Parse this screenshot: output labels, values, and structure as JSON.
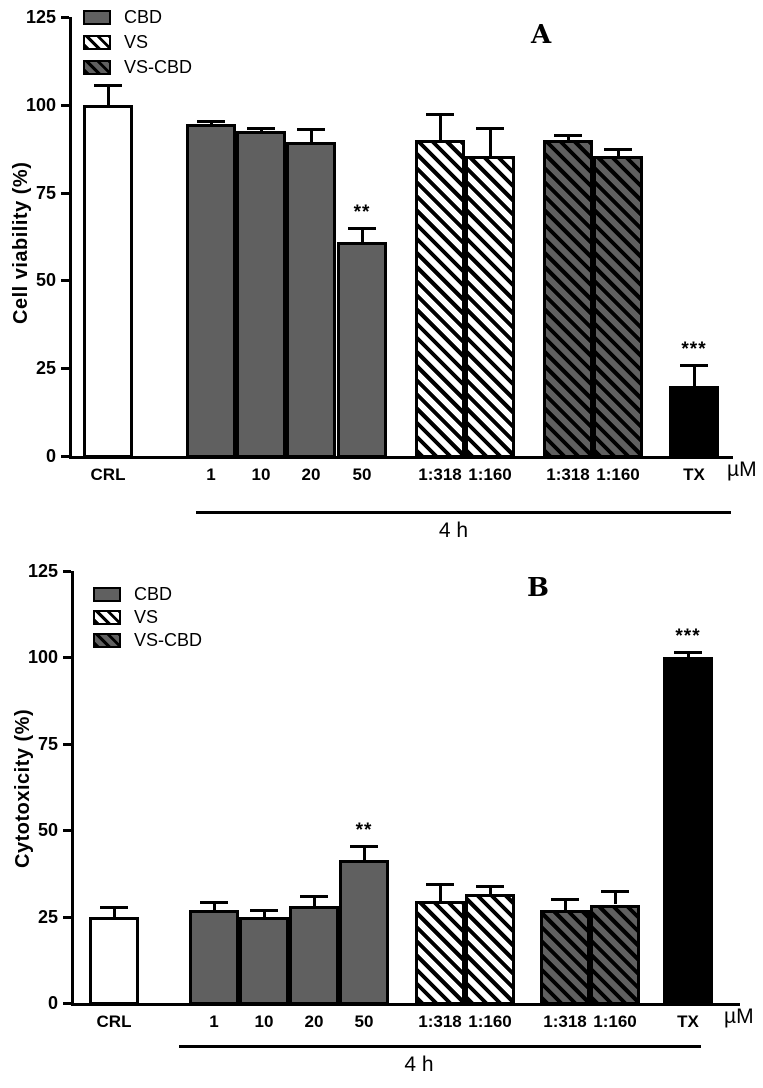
{
  "figure": {
    "background": "#ffffff",
    "ink_color": "#000000",
    "bar_gray": "#606060"
  },
  "chart_data": [
    {
      "type": "bar",
      "panel_letter": "A",
      "ylabel": "Cell viability (%)",
      "ylim": [
        0,
        125
      ],
      "yticks": [
        0,
        25,
        50,
        75,
        100,
        125
      ],
      "x_unit_label": "µM",
      "group_annotation": "4 h",
      "grid": false,
      "legend_position": "top-left",
      "legend": [
        {
          "name": "CBD",
          "pattern": "solid-gray"
        },
        {
          "name": "VS",
          "pattern": "white-black-hatch"
        },
        {
          "name": "VS-CBD",
          "pattern": "gray-black-hatch"
        }
      ],
      "categories": [
        "CRL",
        "1",
        "10",
        "20",
        "50",
        "1:318",
        "1:160",
        "1:318",
        "1:160",
        "TX"
      ],
      "bars": [
        {
          "category": "CRL",
          "series": "CRL",
          "value": 100,
          "error": 5.5,
          "pattern": "white",
          "significance": ""
        },
        {
          "category": "1",
          "series": "CBD",
          "value": 94.5,
          "error": 1,
          "pattern": "solid-gray",
          "significance": ""
        },
        {
          "category": "10",
          "series": "CBD",
          "value": 92.5,
          "error": 0.8,
          "pattern": "solid-gray",
          "significance": ""
        },
        {
          "category": "20",
          "series": "CBD",
          "value": 89.5,
          "error": 3.5,
          "pattern": "solid-gray",
          "significance": ""
        },
        {
          "category": "50",
          "series": "CBD",
          "value": 61,
          "error": 4,
          "pattern": "solid-gray",
          "significance": "**"
        },
        {
          "category": "1:318",
          "series": "VS",
          "value": 90,
          "error": 7.5,
          "pattern": "white-black-hatch",
          "significance": ""
        },
        {
          "category": "1:160",
          "series": "VS",
          "value": 85.5,
          "error": 8,
          "pattern": "white-black-hatch",
          "significance": ""
        },
        {
          "category": "1:318",
          "series": "VS-CBD",
          "value": 90,
          "error": 1.5,
          "pattern": "gray-black-hatch",
          "significance": ""
        },
        {
          "category": "1:160",
          "series": "VS-CBD",
          "value": 85.5,
          "error": 2,
          "pattern": "gray-black-hatch",
          "significance": ""
        },
        {
          "category": "TX",
          "series": "TX",
          "value": 20,
          "error": 6,
          "pattern": "solid-black",
          "significance": "***"
        }
      ]
    },
    {
      "type": "bar",
      "panel_letter": "B",
      "ylabel": "Cytotoxicity (%)",
      "ylim": [
        0,
        125
      ],
      "yticks": [
        0,
        25,
        50,
        75,
        100,
        125
      ],
      "x_unit_label": "µM",
      "group_annotation": "4 h",
      "grid": false,
      "legend_position": "top-left",
      "legend": [
        {
          "name": "CBD",
          "pattern": "solid-gray"
        },
        {
          "name": "VS",
          "pattern": "white-black-hatch"
        },
        {
          "name": "VS-CBD",
          "pattern": "gray-black-hatch"
        }
      ],
      "categories": [
        "CRL",
        "1",
        "10",
        "20",
        "50",
        "1:318",
        "1:160",
        "1:318",
        "1:160",
        "TX"
      ],
      "bars": [
        {
          "category": "CRL",
          "series": "CRL",
          "value": 25,
          "error": 2.8,
          "pattern": "white",
          "significance": ""
        },
        {
          "category": "1",
          "series": "CBD",
          "value": 27,
          "error": 2.3,
          "pattern": "solid-gray",
          "significance": ""
        },
        {
          "category": "10",
          "series": "CBD",
          "value": 25,
          "error": 1.8,
          "pattern": "solid-gray",
          "significance": ""
        },
        {
          "category": "20",
          "series": "CBD",
          "value": 28,
          "error": 3,
          "pattern": "solid-gray",
          "significance": ""
        },
        {
          "category": "50",
          "series": "CBD",
          "value": 41.5,
          "error": 4,
          "pattern": "solid-gray",
          "significance": "**"
        },
        {
          "category": "1:318",
          "series": "VS",
          "value": 29.5,
          "error": 4.8,
          "pattern": "white-black-hatch",
          "significance": ""
        },
        {
          "category": "1:160",
          "series": "VS",
          "value": 31.5,
          "error": 2.3,
          "pattern": "white-black-hatch",
          "significance": ""
        },
        {
          "category": "1:318",
          "series": "VS-CBD",
          "value": 27,
          "error": 3.2,
          "pattern": "gray-black-hatch",
          "significance": ""
        },
        {
          "category": "1:160",
          "series": "VS-CBD",
          "value": 28.5,
          "error": 3.8,
          "pattern": "gray-black-hatch",
          "significance": ""
        },
        {
          "category": "TX",
          "series": "TX",
          "value": 100,
          "error": 1.7,
          "pattern": "solid-black",
          "significance": "***"
        }
      ]
    }
  ]
}
